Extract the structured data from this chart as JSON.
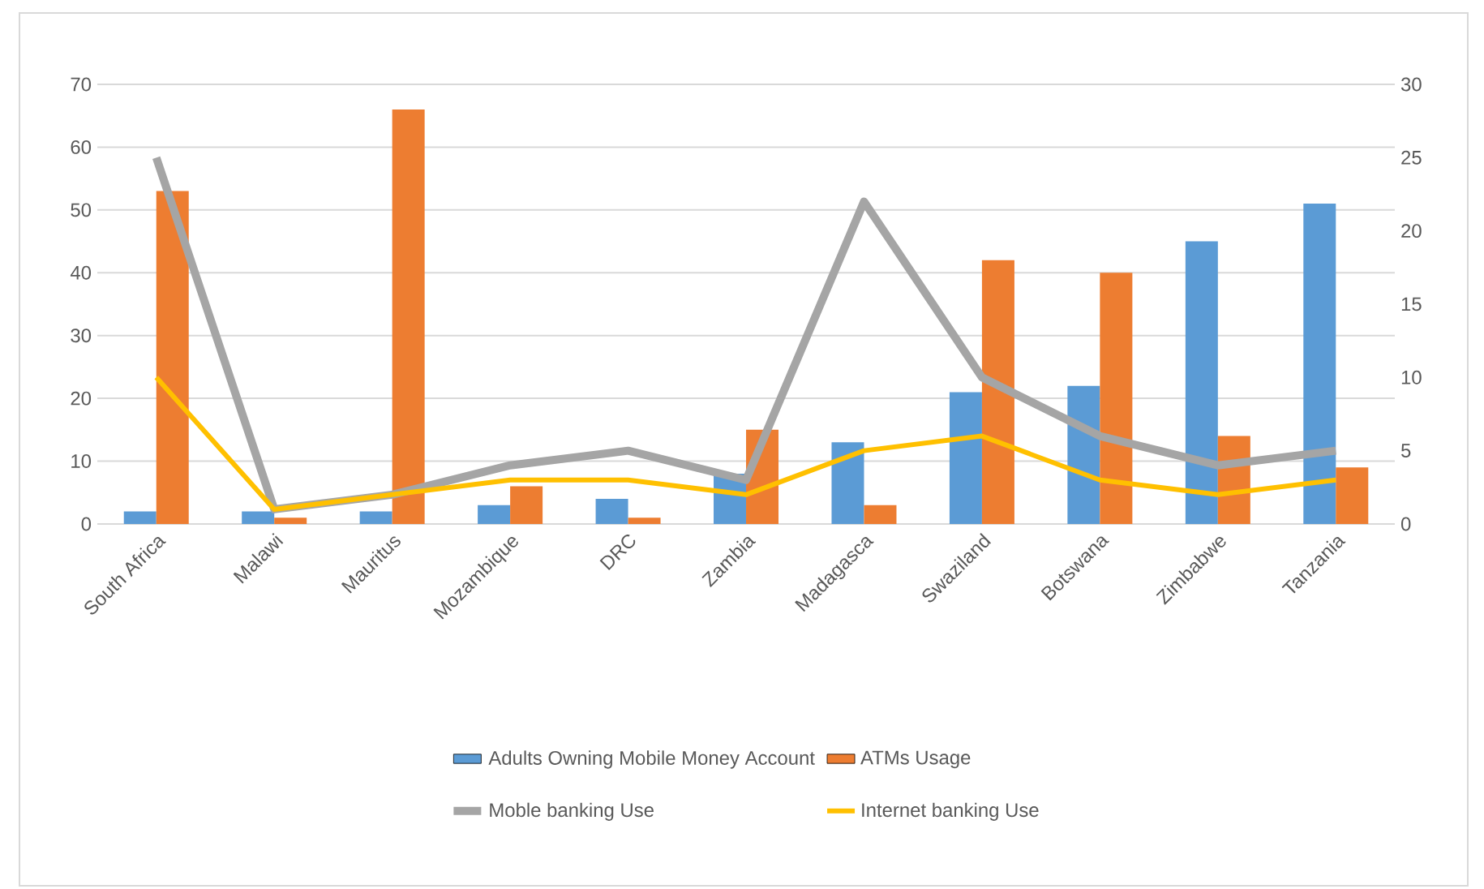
{
  "chart_data": {
    "type": "bar",
    "categories": [
      "South Africa",
      "Malawi",
      "Mauritus",
      "Mozambique",
      "DRC",
      "Zambia",
      "Madagasca",
      "Swaziland",
      "Botswana",
      "Zimbabwe",
      "Tanzania"
    ],
    "series": [
      {
        "name": "Adults Owning Mobile Money Account",
        "color": "#5b9bd5",
        "values": [
          2,
          2,
          2,
          3,
          4,
          8,
          13,
          21,
          22,
          45,
          51
        ]
      },
      {
        "name": "ATMs Usage",
        "color": "#ed7d31",
        "values": [
          53,
          1,
          66,
          6,
          1,
          15,
          3,
          42,
          40,
          14,
          9
        ]
      },
      {
        "name": "Moble banking Use",
        "type": "line",
        "axis": "y2",
        "color": "#a5a5a5",
        "values": [
          25,
          1,
          2,
          4,
          5,
          3,
          22,
          10,
          6,
          4,
          5
        ]
      },
      {
        "name": "Internet banking Use",
        "type": "line",
        "axis": "y2",
        "color": "#ffc000",
        "values": [
          10,
          1,
          2,
          3,
          3,
          2,
          5,
          6,
          3,
          2,
          3
        ]
      }
    ],
    "ylim": [
      0,
      70
    ],
    "yticks": [
      0,
      10,
      20,
      30,
      40,
      50,
      60,
      70
    ],
    "y2lim": [
      0,
      30
    ],
    "y2ticks": [
      0,
      5,
      10,
      15,
      20,
      25,
      30
    ],
    "grid": "y",
    "legend": "bottom"
  }
}
